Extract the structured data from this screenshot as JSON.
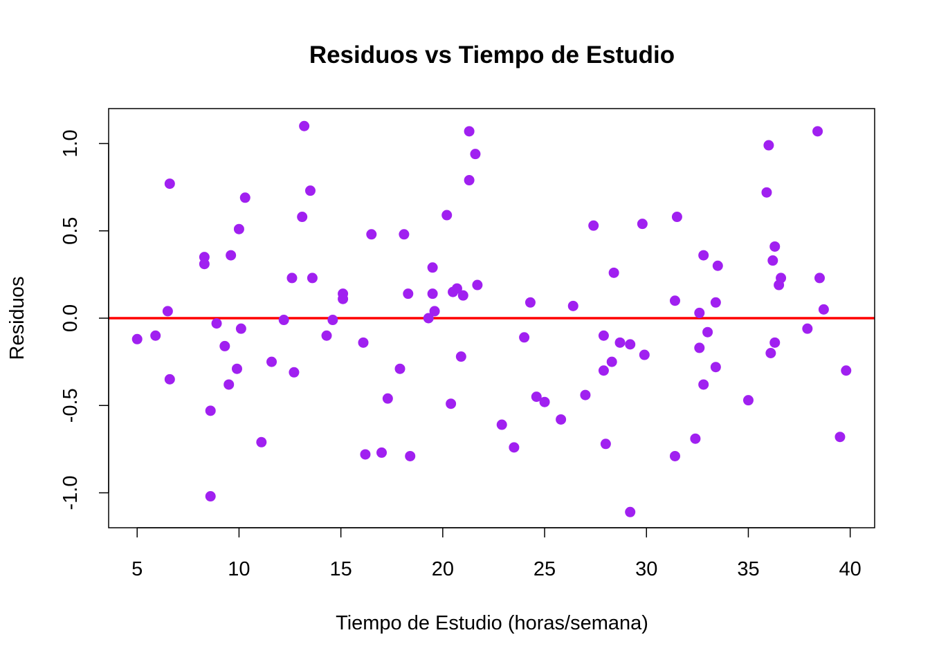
{
  "chart_data": {
    "type": "scatter",
    "title": "Residuos vs Tiempo de Estudio",
    "xlabel": "Tiempo de Estudio (horas/semana)",
    "ylabel": "Residuos",
    "xlim": [
      3.6,
      41.2
    ],
    "ylim": [
      -1.2,
      1.2
    ],
    "x_ticks": [
      5,
      10,
      15,
      20,
      25,
      30,
      35,
      40
    ],
    "x_tick_labels": [
      "5",
      "10",
      "15",
      "20",
      "25",
      "30",
      "35",
      "40"
    ],
    "y_ticks": [
      -1.0,
      -0.5,
      0.0,
      0.5,
      1.0
    ],
    "y_tick_labels": [
      "-1.0",
      "-0.5",
      "0.0",
      "0.5",
      "1.0"
    ],
    "grid": false,
    "point_color": "#A020F0",
    "reference_line": {
      "y": 0,
      "color": "#FF0000"
    },
    "points": [
      {
        "x": 5.0,
        "y": -0.12
      },
      {
        "x": 5.9,
        "y": -0.1
      },
      {
        "x": 6.5,
        "y": 0.04
      },
      {
        "x": 6.6,
        "y": 0.77
      },
      {
        "x": 6.6,
        "y": -0.35
      },
      {
        "x": 8.3,
        "y": 0.35
      },
      {
        "x": 8.3,
        "y": 0.31
      },
      {
        "x": 8.6,
        "y": -0.53
      },
      {
        "x": 8.6,
        "y": -1.02
      },
      {
        "x": 8.9,
        "y": -0.03
      },
      {
        "x": 9.3,
        "y": -0.16
      },
      {
        "x": 9.5,
        "y": -0.38
      },
      {
        "x": 9.6,
        "y": 0.36
      },
      {
        "x": 9.9,
        "y": -0.29
      },
      {
        "x": 10.0,
        "y": 0.51
      },
      {
        "x": 10.1,
        "y": -0.06
      },
      {
        "x": 10.3,
        "y": 0.69
      },
      {
        "x": 11.1,
        "y": -0.71
      },
      {
        "x": 11.6,
        "y": -0.25
      },
      {
        "x": 12.2,
        "y": -0.01
      },
      {
        "x": 12.6,
        "y": 0.23
      },
      {
        "x": 12.7,
        "y": -0.31
      },
      {
        "x": 13.1,
        "y": 0.58
      },
      {
        "x": 13.2,
        "y": 1.1
      },
      {
        "x": 13.5,
        "y": 0.73
      },
      {
        "x": 13.6,
        "y": 0.23
      },
      {
        "x": 14.3,
        "y": -0.1
      },
      {
        "x": 14.6,
        "y": -0.01
      },
      {
        "x": 15.1,
        "y": 0.14
      },
      {
        "x": 15.1,
        "y": 0.11
      },
      {
        "x": 16.1,
        "y": -0.14
      },
      {
        "x": 16.2,
        "y": -0.78
      },
      {
        "x": 16.5,
        "y": 0.48
      },
      {
        "x": 17.0,
        "y": -0.77
      },
      {
        "x": 17.3,
        "y": -0.46
      },
      {
        "x": 17.9,
        "y": -0.29
      },
      {
        "x": 18.1,
        "y": 0.48
      },
      {
        "x": 18.3,
        "y": 0.14
      },
      {
        "x": 18.4,
        "y": -0.79
      },
      {
        "x": 19.3,
        "y": 0.0
      },
      {
        "x": 19.5,
        "y": 0.29
      },
      {
        "x": 19.5,
        "y": 0.14
      },
      {
        "x": 19.6,
        "y": 0.04
      },
      {
        "x": 20.2,
        "y": 0.59
      },
      {
        "x": 20.4,
        "y": -0.49
      },
      {
        "x": 20.5,
        "y": 0.15
      },
      {
        "x": 20.7,
        "y": 0.17
      },
      {
        "x": 20.9,
        "y": -0.22
      },
      {
        "x": 21.0,
        "y": 0.13
      },
      {
        "x": 21.3,
        "y": 1.07
      },
      {
        "x": 21.3,
        "y": 0.79
      },
      {
        "x": 21.6,
        "y": 0.94
      },
      {
        "x": 21.7,
        "y": 0.19
      },
      {
        "x": 22.9,
        "y": -0.61
      },
      {
        "x": 23.5,
        "y": -0.74
      },
      {
        "x": 24.0,
        "y": -0.11
      },
      {
        "x": 24.3,
        "y": 0.09
      },
      {
        "x": 24.6,
        "y": -0.45
      },
      {
        "x": 25.0,
        "y": -0.48
      },
      {
        "x": 25.8,
        "y": -0.58
      },
      {
        "x": 26.4,
        "y": 0.07
      },
      {
        "x": 27.0,
        "y": -0.44
      },
      {
        "x": 27.4,
        "y": 0.53
      },
      {
        "x": 27.9,
        "y": -0.1
      },
      {
        "x": 27.9,
        "y": -0.3
      },
      {
        "x": 28.0,
        "y": -0.72
      },
      {
        "x": 28.3,
        "y": -0.25
      },
      {
        "x": 28.4,
        "y": 0.26
      },
      {
        "x": 28.7,
        "y": -0.14
      },
      {
        "x": 29.2,
        "y": -0.15
      },
      {
        "x": 29.2,
        "y": -1.11
      },
      {
        "x": 29.8,
        "y": 0.54
      },
      {
        "x": 29.9,
        "y": -0.21
      },
      {
        "x": 31.4,
        "y": 0.1
      },
      {
        "x": 31.4,
        "y": -0.79
      },
      {
        "x": 31.5,
        "y": 0.58
      },
      {
        "x": 32.4,
        "y": -0.69
      },
      {
        "x": 32.6,
        "y": 0.03
      },
      {
        "x": 32.6,
        "y": -0.17
      },
      {
        "x": 32.8,
        "y": 0.36
      },
      {
        "x": 32.8,
        "y": -0.38
      },
      {
        "x": 33.0,
        "y": -0.08
      },
      {
        "x": 33.4,
        "y": 0.09
      },
      {
        "x": 33.4,
        "y": -0.28
      },
      {
        "x": 33.5,
        "y": 0.3
      },
      {
        "x": 35.0,
        "y": -0.47
      },
      {
        "x": 35.9,
        "y": 0.72
      },
      {
        "x": 36.0,
        "y": 0.99
      },
      {
        "x": 36.1,
        "y": -0.2
      },
      {
        "x": 36.2,
        "y": 0.33
      },
      {
        "x": 36.3,
        "y": 0.41
      },
      {
        "x": 36.3,
        "y": -0.14
      },
      {
        "x": 36.5,
        "y": 0.19
      },
      {
        "x": 36.6,
        "y": 0.23
      },
      {
        "x": 37.9,
        "y": -0.06
      },
      {
        "x": 38.4,
        "y": 1.07
      },
      {
        "x": 38.5,
        "y": 0.23
      },
      {
        "x": 38.7,
        "y": 0.05
      },
      {
        "x": 39.5,
        "y": -0.68
      },
      {
        "x": 39.8,
        "y": -0.3
      }
    ]
  }
}
